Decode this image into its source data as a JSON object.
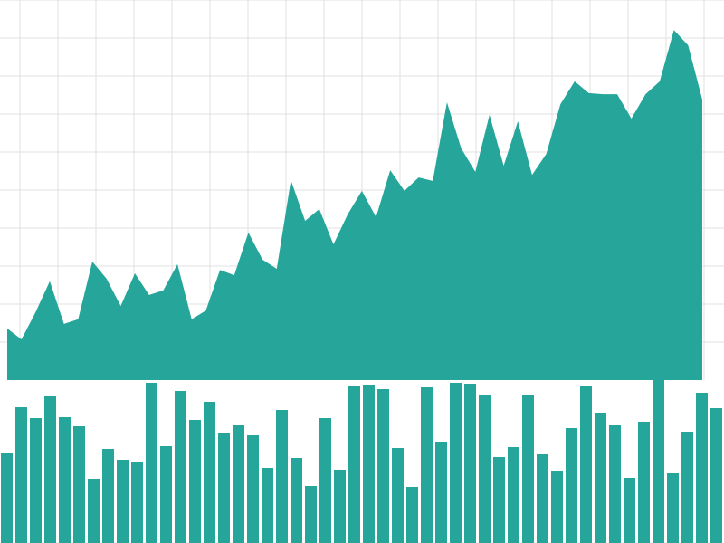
{
  "chart_data": [
    {
      "type": "area",
      "color": "#26a69a",
      "grid": true,
      "categories": [
        null,
        null,
        null,
        null,
        null,
        null,
        null,
        null,
        null,
        null,
        null,
        null,
        null,
        null,
        null,
        null,
        null,
        null,
        null,
        null,
        null,
        null,
        null,
        null,
        null,
        null,
        null,
        null,
        null,
        null,
        null,
        null,
        null,
        null,
        null,
        null,
        null,
        null,
        null,
        null,
        null,
        null,
        null,
        null,
        null,
        null,
        null,
        null,
        null,
        null
      ],
      "values": [
        1.36,
        1.07,
        1.79,
        2.6,
        1.48,
        1.6,
        3.12,
        2.67,
        1.95,
        2.81,
        2.24,
        2.36,
        3.05,
        1.6,
        1.83,
        2.9,
        2.76,
        3.88,
        3.17,
        2.93,
        5.26,
        4.19,
        4.5,
        3.57,
        4.36,
        4.98,
        4.29,
        5.52,
        4.98,
        5.33,
        5.24,
        7.31,
        6.1,
        5.48,
        6.98,
        5.64,
        6.81,
        5.4,
        5.95,
        7.26,
        7.86,
        7.55,
        7.52,
        7.52,
        6.88,
        7.52,
        7.86,
        9.21,
        8.81,
        7.38
      ],
      "ylim": [
        0,
        10
      ],
      "yticks": [
        1,
        2,
        3,
        4,
        5,
        6,
        7,
        8,
        9,
        10
      ]
    },
    {
      "type": "bar",
      "color": "#26a69a",
      "categories": [
        null,
        null,
        null,
        null,
        null,
        null,
        null,
        null,
        null,
        null,
        null,
        null,
        null,
        null,
        null,
        null,
        null,
        null,
        null,
        null,
        null,
        null,
        null,
        null,
        null,
        null,
        null,
        null,
        null,
        null,
        null,
        null,
        null,
        null,
        null,
        null,
        null,
        null,
        null,
        null,
        null,
        null,
        null,
        null,
        null,
        null,
        null,
        null,
        null,
        null
      ],
      "values": [
        99,
        150,
        138,
        162,
        139,
        129,
        71,
        104,
        92,
        89,
        177,
        107,
        168,
        136,
        156,
        121,
        130,
        119,
        83,
        147,
        94,
        63,
        138,
        81,
        174,
        175,
        170,
        105,
        62,
        172,
        112,
        177,
        176,
        164,
        95,
        106,
        163,
        98,
        80,
        127,
        173,
        144,
        130,
        72,
        134,
        180,
        77,
        123,
        166,
        149
      ],
      "ylim": [
        0,
        180
      ]
    }
  ]
}
